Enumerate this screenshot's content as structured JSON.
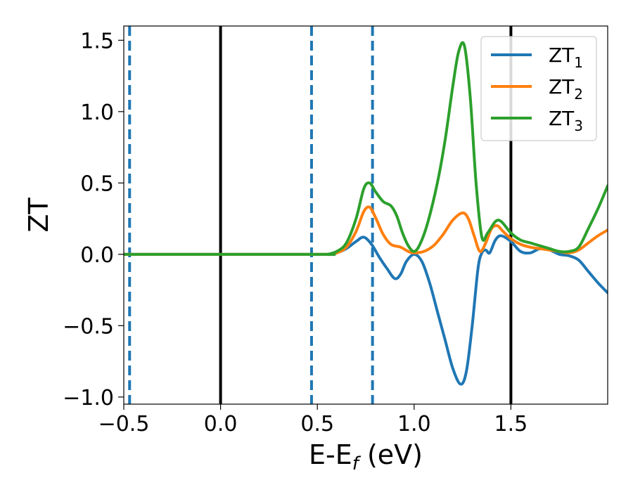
{
  "chart_data": {
    "type": "line",
    "xlabel": {
      "main": "E-E",
      "sub": "f",
      "suffix": " (eV)"
    },
    "ylabel": "ZT",
    "xlim": [
      -0.5,
      2.0
    ],
    "ylim": [
      -1.05,
      1.6
    ],
    "x_ticks": [
      -0.5,
      0.0,
      0.5,
      1.0,
      1.5
    ],
    "x_tick_labels": [
      "−0.5",
      "0.0",
      "0.5",
      "1.0",
      "1.5"
    ],
    "y_ticks": [
      -1.0,
      -0.5,
      0.0,
      0.5,
      1.0,
      1.5
    ],
    "y_tick_labels": [
      "−1.0",
      "−0.5",
      "0.0",
      "0.5",
      "1.0",
      "1.5"
    ],
    "grid": false,
    "legend_position": "top-right",
    "vertical_lines": [
      {
        "x": 0.0,
        "style": "solid",
        "color": "#000000"
      },
      {
        "x": 1.5,
        "style": "solid",
        "color": "#000000"
      },
      {
        "x": -0.47,
        "style": "dashed",
        "color": "#1f77b4"
      },
      {
        "x": 0.47,
        "style": "dashed",
        "color": "#1f77b4"
      },
      {
        "x": 0.785,
        "style": "dashed",
        "color": "#1f77b4"
      }
    ],
    "series": [
      {
        "name": "ZT",
        "subscript": "1",
        "color": "#1f77b4",
        "points": [
          [
            -0.5,
            0.0
          ],
          [
            0.5,
            0.0
          ],
          [
            0.55,
            0.0
          ],
          [
            0.6,
            0.01
          ],
          [
            0.65,
            0.04
          ],
          [
            0.7,
            0.09
          ],
          [
            0.74,
            0.12
          ],
          [
            0.78,
            0.07
          ],
          [
            0.82,
            -0.02
          ],
          [
            0.86,
            -0.1
          ],
          [
            0.9,
            -0.17
          ],
          [
            0.93,
            -0.14
          ],
          [
            0.96,
            -0.05
          ],
          [
            1.0,
            0.0
          ],
          [
            1.04,
            -0.05
          ],
          [
            1.08,
            -0.2
          ],
          [
            1.12,
            -0.4
          ],
          [
            1.16,
            -0.6
          ],
          [
            1.2,
            -0.8
          ],
          [
            1.24,
            -0.91
          ],
          [
            1.27,
            -0.82
          ],
          [
            1.3,
            -0.5
          ],
          [
            1.33,
            -0.1
          ],
          [
            1.35,
            0.01
          ],
          [
            1.37,
            0.03
          ],
          [
            1.39,
            0.01
          ],
          [
            1.42,
            0.1
          ],
          [
            1.45,
            0.13
          ],
          [
            1.5,
            0.09
          ],
          [
            1.55,
            0.02
          ],
          [
            1.6,
            0.01
          ],
          [
            1.65,
            0.04
          ],
          [
            1.7,
            0.03
          ],
          [
            1.75,
            0.0
          ],
          [
            1.8,
            -0.01
          ],
          [
            1.85,
            -0.04
          ],
          [
            1.9,
            -0.12
          ],
          [
            1.95,
            -0.2
          ],
          [
            2.0,
            -0.27
          ]
        ]
      },
      {
        "name": "ZT",
        "subscript": "2",
        "color": "#ff7f0e",
        "points": [
          [
            -0.5,
            0.0
          ],
          [
            0.5,
            0.0
          ],
          [
            0.55,
            0.0
          ],
          [
            0.6,
            0.01
          ],
          [
            0.65,
            0.05
          ],
          [
            0.7,
            0.16
          ],
          [
            0.74,
            0.3
          ],
          [
            0.77,
            0.33
          ],
          [
            0.8,
            0.26
          ],
          [
            0.84,
            0.14
          ],
          [
            0.88,
            0.07
          ],
          [
            0.93,
            0.05
          ],
          [
            0.97,
            0.02
          ],
          [
            1.0,
            0.01
          ],
          [
            1.05,
            0.02
          ],
          [
            1.1,
            0.06
          ],
          [
            1.15,
            0.14
          ],
          [
            1.2,
            0.24
          ],
          [
            1.25,
            0.29
          ],
          [
            1.28,
            0.25
          ],
          [
            1.31,
            0.13
          ],
          [
            1.34,
            0.02
          ],
          [
            1.37,
            0.08
          ],
          [
            1.4,
            0.18
          ],
          [
            1.43,
            0.2
          ],
          [
            1.46,
            0.16
          ],
          [
            1.5,
            0.11
          ],
          [
            1.55,
            0.07
          ],
          [
            1.6,
            0.05
          ],
          [
            1.65,
            0.04
          ],
          [
            1.7,
            0.03
          ],
          [
            1.75,
            0.02
          ],
          [
            1.8,
            0.01
          ],
          [
            1.85,
            0.03
          ],
          [
            1.9,
            0.08
          ],
          [
            1.95,
            0.13
          ],
          [
            2.0,
            0.17
          ]
        ]
      },
      {
        "name": "ZT",
        "subscript": "3",
        "color": "#2ca02c",
        "points": [
          [
            -0.5,
            0.0
          ],
          [
            0.5,
            0.0
          ],
          [
            0.55,
            0.0
          ],
          [
            0.6,
            0.02
          ],
          [
            0.65,
            0.08
          ],
          [
            0.7,
            0.25
          ],
          [
            0.74,
            0.46
          ],
          [
            0.77,
            0.5
          ],
          [
            0.8,
            0.44
          ],
          [
            0.84,
            0.37
          ],
          [
            0.88,
            0.34
          ],
          [
            0.91,
            0.27
          ],
          [
            0.94,
            0.15
          ],
          [
            0.97,
            0.06
          ],
          [
            1.0,
            0.02
          ],
          [
            1.03,
            0.07
          ],
          [
            1.07,
            0.22
          ],
          [
            1.12,
            0.5
          ],
          [
            1.16,
            0.8
          ],
          [
            1.2,
            1.18
          ],
          [
            1.23,
            1.42
          ],
          [
            1.26,
            1.46
          ],
          [
            1.29,
            1.1
          ],
          [
            1.32,
            0.5
          ],
          [
            1.35,
            0.12
          ],
          [
            1.38,
            0.15
          ],
          [
            1.42,
            0.23
          ],
          [
            1.45,
            0.23
          ],
          [
            1.5,
            0.15
          ],
          [
            1.55,
            0.1
          ],
          [
            1.6,
            0.08
          ],
          [
            1.65,
            0.06
          ],
          [
            1.7,
            0.04
          ],
          [
            1.75,
            0.02
          ],
          [
            1.8,
            0.02
          ],
          [
            1.85,
            0.05
          ],
          [
            1.9,
            0.18
          ],
          [
            1.95,
            0.32
          ],
          [
            2.0,
            0.48
          ]
        ]
      }
    ]
  }
}
